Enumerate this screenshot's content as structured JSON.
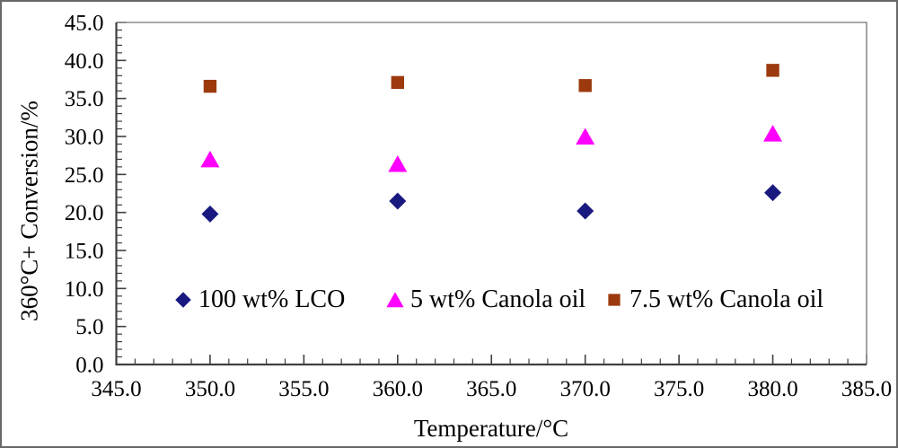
{
  "chart_data": {
    "type": "scatter",
    "title": "",
    "xlabel": "Temperature/°C",
    "ylabel": "360°C+ Conversion/%",
    "xlim": [
      345.0,
      385.0
    ],
    "ylim": [
      0.0,
      45.0
    ],
    "x_tick_labels": [
      "345.0",
      "350.0",
      "355.0",
      "360.0",
      "365.0",
      "370.0",
      "375.0",
      "380.0",
      "385.0"
    ],
    "y_tick_labels": [
      "0.0",
      "5.0",
      "10.0",
      "15.0",
      "20.0",
      "25.0",
      "30.0",
      "35.0",
      "40.0",
      "45.0"
    ],
    "x_major_step": 5.0,
    "x_minor_step": 1.0,
    "y_major_step": 5.0,
    "y_minor_step": 1.0,
    "grid": false,
    "legend_position": "inside-bottom",
    "categories": [
      350.0,
      360.0,
      370.0,
      380.0
    ],
    "series": [
      {
        "name": "100 wt% LCO",
        "marker": "diamond",
        "color": "#191980",
        "values": [
          19.8,
          21.5,
          20.2,
          22.6
        ]
      },
      {
        "name": "5 wt% Canola oil",
        "marker": "triangle",
        "color": "#FF00FF",
        "values": [
          27.0,
          26.4,
          30.0,
          30.4
        ]
      },
      {
        "name": "7.5 wt% Canola oil",
        "marker": "square",
        "color": "#9C3A0E",
        "values": [
          36.6,
          37.1,
          36.7,
          38.7
        ]
      }
    ],
    "axis_color": "#404040",
    "frame_color": "#8C8C8C"
  }
}
